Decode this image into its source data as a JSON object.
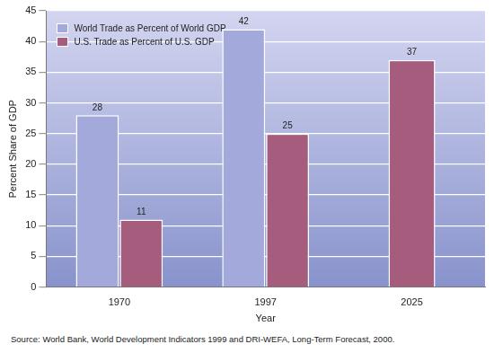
{
  "chart_data": {
    "type": "bar",
    "categories": [
      "1970",
      "1997",
      "2025"
    ],
    "series": [
      {
        "name": "World Trade as Percent of World GDP",
        "color": "#a3a9da",
        "values": [
          28,
          42,
          null
        ]
      },
      {
        "name": "U.S. Trade as Percent of U.S. GDP",
        "color": "#a65c7c",
        "values": [
          11,
          25,
          37
        ]
      }
    ],
    "x_label": "Year",
    "y_label": "Percent Share of GDP",
    "ylim": [
      0,
      45
    ],
    "yticks": [
      0,
      5,
      10,
      15,
      20,
      25,
      30,
      35,
      40,
      45
    ],
    "grid": true,
    "legend": "upper left",
    "data_labels": true,
    "source": "Source: World Bank, World Development Indicators 1999 and DRI-WEFA, Long-Term Forecast, 2000."
  }
}
